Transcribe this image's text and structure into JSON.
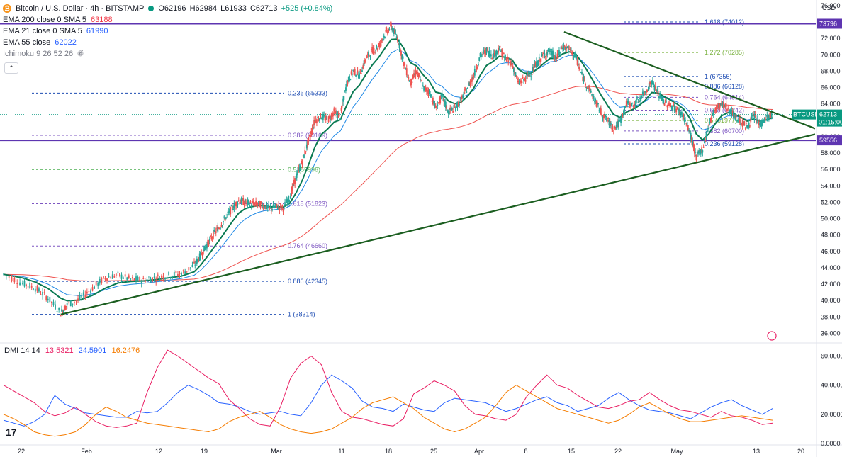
{
  "header": {
    "symbol_title": "Bitcoin / U.S. Dollar · 4h · BITSTAMP",
    "ohlc": {
      "open": "O62196",
      "high": "H62984",
      "low": "L61933",
      "close": "C62713",
      "change": "+525 (+0.84%)"
    },
    "indicators": [
      {
        "label": "EMA 200 close 0 SMA 5",
        "value": "63188",
        "color": "#f23645"
      },
      {
        "label": "EMA 21 close 0 SMA 5",
        "value": "61990",
        "color": "#2962ff"
      },
      {
        "label": "EMA 55 close",
        "value": "62022",
        "color": "#089981"
      },
      {
        "label": "Ichimoku 9 26 52 26",
        "value": "",
        "color": "#787b86"
      }
    ]
  },
  "colors": {
    "ema200": "#ef5350",
    "ema21": "#1e88e5",
    "ema55": "#0a7a52",
    "up": "#26a69a",
    "down": "#ef5350",
    "trendline": "#1b5e20",
    "hline": "#5e35b1",
    "fib_purple": "#7e57c2",
    "fib_green": "#4caf50",
    "fib_blue": "#1e4db3",
    "price_tag": "#089981",
    "dmi_plus": "#2962ff",
    "dmi_minus": "#e91e63",
    "adx": "#f57c00"
  },
  "chart_data": [
    {
      "type": "candlestick",
      "title": "Bitcoin / U.S. Dollar · 4h · BITSTAMP",
      "y_axis_unit": "USD",
      "ylim": [
        35000,
        76000
      ],
      "y_ticks": [
        36000,
        38000,
        40000,
        42000,
        44000,
        46000,
        48000,
        50000,
        52000,
        54000,
        56000,
        58000,
        60000,
        62000,
        64000,
        66000,
        68000,
        70000,
        72000,
        76000
      ],
      "x_ticks": [
        "22",
        "Feb",
        "12",
        "19",
        "Mar",
        "11",
        "18",
        "25",
        "Apr",
        "8",
        "15",
        "22",
        "May",
        "13",
        "20"
      ],
      "last_price": {
        "value": 62713,
        "label": "BTCUSD",
        "countdown": "01:15:00"
      },
      "horizontal_lines": [
        {
          "value": 73796,
          "label": "73796"
        },
        {
          "value": 59556,
          "label": "59556"
        }
      ],
      "fib_levels_main": [
        {
          "ratio": "1",
          "value": 38314,
          "label": "1 (38314)"
        },
        {
          "ratio": "0.886",
          "value": 42345,
          "label": "0.886 (42345)"
        },
        {
          "ratio": "0.764",
          "value": 46660,
          "label": "0.764 (46660)"
        },
        {
          "ratio": "0.618",
          "value": 51823,
          "label": "0.618 (51823)"
        },
        {
          "ratio": "0.5",
          "value": 55996,
          "label": "0.5 (55996)"
        },
        {
          "ratio": "0.382",
          "value": 60169,
          "label": "0.382 (60169)"
        },
        {
          "ratio": "0.236",
          "value": 65333,
          "label": "0.236 (65333)"
        }
      ],
      "fib_levels_recent": [
        {
          "ratio": "0.236",
          "value": 59128,
          "label": "0.236 (59128)"
        },
        {
          "ratio": "0.382",
          "value": 60700,
          "label": "0.382 (60700)"
        },
        {
          "ratio": "0.5",
          "value": 61977,
          "label": "0.5 (61977)"
        },
        {
          "ratio": "0.618",
          "value": 63242,
          "label": "0.618 (63242)"
        },
        {
          "ratio": "0.764",
          "value": 64814,
          "label": "0.764 (64814)"
        },
        {
          "ratio": "0.886",
          "value": 66128,
          "label": "0.886 (66128)"
        },
        {
          "ratio": "1",
          "value": 67356,
          "label": "1 (67356)"
        },
        {
          "ratio": "1.272",
          "value": 70285,
          "label": "1.272 (70285)"
        },
        {
          "ratio": "1.618",
          "value": 74012,
          "label": "1.618 (74012)"
        }
      ],
      "price_path": [
        [
          0,
          43200
        ],
        [
          3,
          42100
        ],
        [
          5,
          41500
        ],
        [
          7,
          40300
        ],
        [
          9,
          38500
        ],
        [
          10,
          39500
        ],
        [
          12,
          40200
        ],
        [
          14,
          41500
        ],
        [
          16,
          42800
        ],
        [
          18,
          43100
        ],
        [
          20,
          42600
        ],
        [
          22,
          42500
        ],
        [
          24,
          42800
        ],
        [
          26,
          43100
        ],
        [
          28,
          43300
        ],
        [
          30,
          44300
        ],
        [
          31,
          45500
        ],
        [
          32,
          46800
        ],
        [
          33,
          48000
        ],
        [
          34,
          49000
        ],
        [
          35,
          50200
        ],
        [
          36,
          51300
        ],
        [
          37,
          52200
        ],
        [
          38,
          52000
        ],
        [
          39,
          51800
        ],
        [
          40,
          51800
        ],
        [
          41,
          51600
        ],
        [
          42,
          51200
        ],
        [
          43,
          51500
        ],
        [
          44,
          51300
        ],
        [
          45,
          52500
        ],
        [
          46,
          55000
        ],
        [
          47,
          57000
        ],
        [
          48,
          59500
        ],
        [
          49,
          62000
        ],
        [
          50,
          62500
        ],
        [
          51,
          62000
        ],
        [
          52,
          63000
        ],
        [
          53,
          62500
        ],
        [
          54,
          66500
        ],
        [
          55,
          68000
        ],
        [
          56,
          67500
        ],
        [
          57,
          69500
        ],
        [
          58,
          70500
        ],
        [
          59,
          71000
        ],
        [
          60,
          72500
        ],
        [
          61,
          73500
        ],
        [
          62,
          72000
        ],
        [
          63,
          69000
        ],
        [
          64,
          66500
        ],
        [
          65,
          68000
        ],
        [
          66,
          66000
        ],
        [
          67,
          65500
        ],
        [
          68,
          63500
        ],
        [
          69,
          65000
        ],
        [
          70,
          63000
        ],
        [
          71,
          63500
        ],
        [
          72,
          64500
        ],
        [
          73,
          66000
        ],
        [
          74,
          67500
        ],
        [
          75,
          69800
        ],
        [
          76,
          70500
        ],
        [
          77,
          69900
        ],
        [
          78,
          70800
        ],
        [
          79,
          69500
        ],
        [
          80,
          69000
        ],
        [
          81,
          66500
        ],
        [
          82,
          67000
        ],
        [
          83,
          67800
        ],
        [
          84,
          69000
        ],
        [
          85,
          70000
        ],
        [
          86,
          70500
        ],
        [
          87,
          69500
        ],
        [
          88,
          71000
        ],
        [
          89,
          70700
        ],
        [
          90,
          69800
        ],
        [
          91,
          67500
        ],
        [
          92,
          66000
        ],
        [
          93,
          64500
        ],
        [
          94,
          63000
        ],
        [
          95,
          62000
        ],
        [
          96,
          61000
        ],
        [
          97,
          61800
        ],
        [
          98,
          64000
        ],
        [
          99,
          63800
        ],
        [
          100,
          64500
        ],
        [
          101,
          65500
        ],
        [
          102,
          66800
        ],
        [
          103,
          65200
        ],
        [
          104,
          64200
        ],
        [
          105,
          63800
        ],
        [
          106,
          63300
        ],
        [
          107,
          62500
        ],
        [
          108,
          60500
        ],
        [
          109,
          57500
        ],
        [
          110,
          58500
        ],
        [
          111,
          61500
        ],
        [
          112,
          63500
        ],
        [
          113,
          64000
        ],
        [
          114,
          63500
        ],
        [
          115,
          62500
        ],
        [
          116,
          61800
        ],
        [
          117,
          61200
        ],
        [
          118,
          62500
        ],
        [
          119,
          61500
        ],
        [
          120,
          62300
        ],
        [
          121,
          62713
        ]
      ],
      "x_domain": [
        0,
        121
      ]
    },
    {
      "type": "line",
      "title": "DMI 14 14",
      "legend": [
        {
          "name": "DMI 14 14",
          "value": ""
        },
        {
          "name": "",
          "value": "13.5321"
        },
        {
          "name": "",
          "value": "24.5901"
        },
        {
          "name": "",
          "value": "16.2476"
        }
      ],
      "ylim": [
        0,
        68
      ],
      "y_ticks": [
        "0.0000",
        "20.0000",
        "40.0000",
        "60.0000"
      ],
      "series": [
        {
          "color": "#2962ff",
          "values": [
            16,
            14,
            12,
            15,
            20,
            33,
            27,
            24,
            21,
            20,
            19,
            18,
            18,
            22,
            21,
            22,
            28,
            35,
            40,
            37,
            33,
            28,
            27,
            25,
            22,
            20,
            21,
            22,
            20,
            19,
            28,
            40,
            47,
            43,
            38,
            29,
            25,
            24,
            22,
            27,
            25,
            23,
            22,
            28,
            31,
            30,
            29,
            28,
            25,
            22,
            24,
            27,
            30,
            32,
            28,
            26,
            22,
            24,
            26,
            31,
            35,
            30,
            26,
            23,
            22,
            21,
            19,
            17,
            21,
            25,
            28,
            30,
            26,
            23,
            20,
            24
          ]
        },
        {
          "color": "#e91e63",
          "values": [
            40,
            36,
            32,
            28,
            22,
            19,
            21,
            25,
            20,
            15,
            12,
            11,
            12,
            14,
            35,
            52,
            64,
            60,
            55,
            50,
            45,
            41,
            30,
            24,
            17,
            13,
            12,
            25,
            45,
            55,
            60,
            54,
            35,
            22,
            18,
            17,
            15,
            13,
            12,
            17,
            34,
            38,
            43,
            40,
            36,
            26,
            20,
            19,
            17,
            16,
            20,
            32,
            40,
            47,
            40,
            38,
            33,
            29,
            25,
            24,
            26,
            29,
            30,
            35,
            30,
            26,
            23,
            22,
            20,
            18,
            22,
            19,
            18,
            16,
            13,
            14
          ]
        },
        {
          "color": "#f57c00",
          "values": [
            20,
            17,
            13,
            8,
            6,
            5,
            6,
            8,
            13,
            20,
            25,
            22,
            18,
            16,
            14,
            13,
            12,
            11,
            10,
            9,
            8,
            10,
            15,
            18,
            20,
            22,
            18,
            13,
            10,
            8,
            7,
            8,
            10,
            14,
            18,
            24,
            28,
            30,
            32,
            28,
            24,
            18,
            14,
            10,
            8,
            10,
            14,
            18,
            26,
            35,
            40,
            36,
            32,
            28,
            24,
            22,
            20,
            18,
            16,
            14,
            16,
            20,
            25,
            28,
            24,
            20,
            17,
            15,
            15,
            16,
            17,
            18,
            19,
            18,
            17,
            16
          ]
        }
      ]
    }
  ],
  "footer": {
    "logo": "17"
  },
  "ui": {
    "collapse_glyph": "⌃"
  }
}
